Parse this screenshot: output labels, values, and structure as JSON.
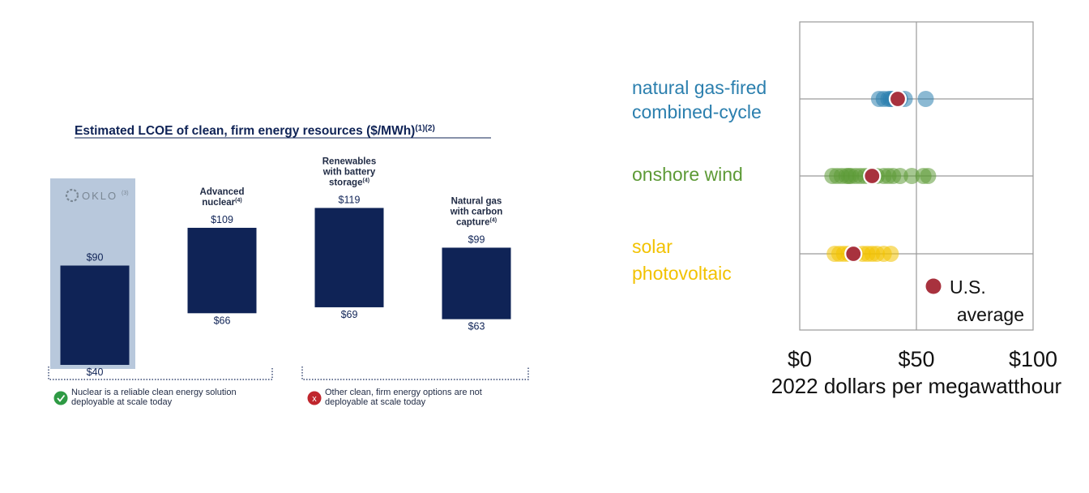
{
  "chart_data": [
    {
      "type": "bar",
      "subtype": "floating-range",
      "title": "Estimated LCOE of clean, firm energy resources ($/MWh)",
      "title_superscript": "(1)(2)",
      "unit": "$/MWh",
      "categories": [
        {
          "label": "",
          "logo_text": "OKLO",
          "logo_superscript": "(3)",
          "low": 40,
          "high": 90,
          "low_label": "$40",
          "high_label": "$90",
          "highlighted": true
        },
        {
          "label_lines": [
            "Advanced",
            "nuclear"
          ],
          "superscript": "(4)",
          "low": 66,
          "high": 109,
          "low_label": "$66",
          "high_label": "$109",
          "highlighted": false
        },
        {
          "label_lines": [
            "Renewables",
            "with battery",
            "storage"
          ],
          "superscript": "(4)",
          "low": 69,
          "high": 119,
          "low_label": "$69",
          "high_label": "$119",
          "highlighted": false
        },
        {
          "label_lines": [
            "Natural gas",
            "with carbon",
            "capture"
          ],
          "superscript": "(4)",
          "low": 63,
          "high": 99,
          "low_label": "$63",
          "high_label": "$99",
          "highlighted": false
        }
      ],
      "groups": [
        {
          "status": "check",
          "text_lines": [
            "Nuclear is a reliable clean energy solution",
            "deployable at scale today"
          ]
        },
        {
          "status": "cross",
          "text_lines": [
            "Other clean, firm energy options are not",
            "deployable at scale today"
          ]
        }
      ],
      "colors": {
        "bar": "#0f2356",
        "highlight": "#b8c8dc",
        "check": "#2e9a44",
        "cross": "#c0262d",
        "text": "#0f2356"
      }
    },
    {
      "type": "scatter",
      "subtype": "dot-strip",
      "xlabel": "2022 dollars per megawatthour",
      "xlim": [
        0,
        100
      ],
      "xticks": [
        0,
        50,
        100
      ],
      "xtick_labels": [
        "$0",
        "$50",
        "$100"
      ],
      "rows": [
        {
          "label_lines": [
            "natural gas-fired",
            "combined-cycle"
          ],
          "color": "#2b7fae",
          "values": [
            34,
            36,
            38,
            39,
            40,
            41,
            42,
            43,
            45,
            54
          ],
          "average": 42
        },
        {
          "label_lines": [
            "onshore wind"
          ],
          "color": "#5d9a36",
          "values": [
            14,
            16,
            18,
            20,
            21,
            22,
            24,
            26,
            28,
            30,
            33,
            36,
            38,
            40,
            43,
            48,
            53,
            55
          ],
          "average": 31
        },
        {
          "label_lines": [
            "solar",
            "photovoltaic"
          ],
          "color": "#f2c200",
          "values": [
            15,
            17,
            19,
            21,
            24,
            27,
            29,
            31,
            33,
            36,
            39
          ],
          "average": 23
        }
      ],
      "legend": {
        "label_lines": [
          "U.S.",
          "average"
        ],
        "color": "#a8323e",
        "position": "bottom-right"
      }
    }
  ]
}
